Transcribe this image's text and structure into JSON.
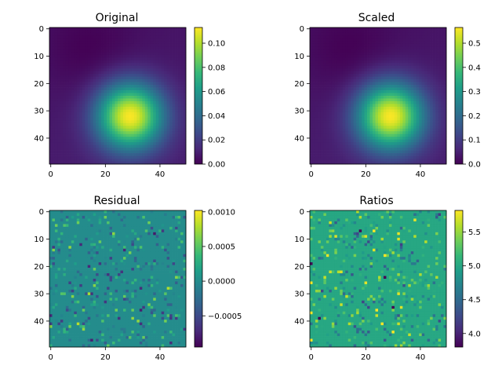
{
  "figure": {
    "cmap_stops": [
      "#440154",
      "#482878",
      "#3e4989",
      "#31688e",
      "#26828e",
      "#1f9e89",
      "#35b779",
      "#6ece58",
      "#b5de2b",
      "#fde725"
    ]
  },
  "chart_data": [
    {
      "type": "heatmap",
      "title": "Original",
      "image_shape": [
        50,
        50
      ],
      "x_ticks": [
        "0",
        "20",
        "40"
      ],
      "y_ticks": [
        "0",
        "10",
        "20",
        "30",
        "40"
      ],
      "colorbar": {
        "range": [
          0.0,
          0.113
        ],
        "ticks": [
          "0.00",
          "0.02",
          "0.04",
          "0.06",
          "0.08",
          "0.10"
        ]
      },
      "features": [
        {
          "kind": "gaussian_peak",
          "center": [
            29,
            32
          ],
          "sigma": 8.5,
          "value": 0.113
        },
        {
          "kind": "minimum",
          "center": [
            14,
            8
          ],
          "value": 0.0
        }
      ]
    },
    {
      "type": "heatmap",
      "title": "Scaled",
      "image_shape": [
        50,
        50
      ],
      "x_ticks": [
        "0",
        "20",
        "40"
      ],
      "y_ticks": [
        "0",
        "10",
        "20",
        "30",
        "40"
      ],
      "colorbar": {
        "range": [
          0.0,
          0.565
        ],
        "ticks": [
          "0.0",
          "0.1",
          "0.2",
          "0.3",
          "0.4",
          "0.5"
        ]
      },
      "features": [
        {
          "kind": "gaussian_peak",
          "center": [
            29,
            32
          ],
          "sigma": 8.5,
          "value": 0.565
        },
        {
          "kind": "minimum",
          "center": [
            14,
            8
          ],
          "value": 0.0
        }
      ]
    },
    {
      "type": "heatmap",
      "title": "Residual",
      "image_shape": [
        50,
        50
      ],
      "x_ticks": [
        "0",
        "20",
        "40"
      ],
      "y_ticks": [
        "0",
        "10",
        "20",
        "30",
        "40"
      ],
      "colorbar": {
        "range": [
          -0.00095,
          0.00102
        ],
        "ticks": [
          "0.0010",
          "0.0005",
          "0.0000",
          "−0.0005"
        ]
      },
      "features": [
        {
          "kind": "sparse_noise",
          "baseline": 0.0
        }
      ]
    },
    {
      "type": "heatmap",
      "title": "Ratios",
      "image_shape": [
        50,
        50
      ],
      "x_ticks": [
        "0",
        "20",
        "40"
      ],
      "y_ticks": [
        "0",
        "10",
        "20",
        "30",
        "40"
      ],
      "colorbar": {
        "range": [
          3.8,
          5.82
        ],
        "ticks": [
          "4.0",
          "4.5",
          "5.0",
          "5.5"
        ]
      },
      "features": [
        {
          "kind": "sparse_noise",
          "baseline": 5.0
        }
      ]
    }
  ]
}
